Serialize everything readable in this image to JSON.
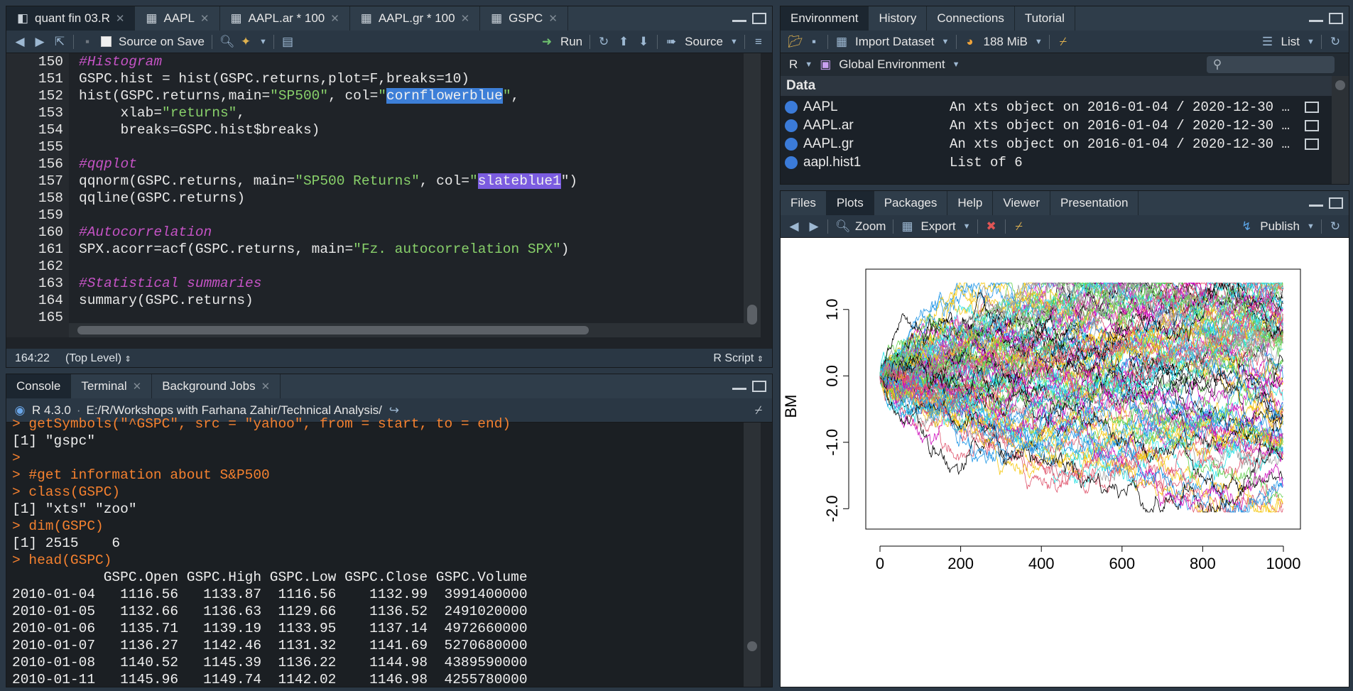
{
  "source_pane": {
    "tabs": [
      {
        "label": "quant fin 03.R",
        "active": true
      },
      {
        "label": "AAPL"
      },
      {
        "label": "AAPL.ar * 100"
      },
      {
        "label": "AAPL.gr * 100"
      },
      {
        "label": "GSPC"
      }
    ],
    "toolbar": {
      "source_on_save": "Source on Save",
      "run": "Run",
      "source": "Source"
    },
    "code_lines": [
      {
        "n": "150",
        "parts": [
          {
            "t": "#Histogram",
            "c": "cm"
          }
        ]
      },
      {
        "n": "151",
        "parts": [
          {
            "t": "GSPC.hist = hist(GSPC.returns,plot=F,breaks=10)",
            "c": ""
          }
        ]
      },
      {
        "n": "152",
        "parts": [
          {
            "t": "hist(GSPC.returns,main=",
            "c": ""
          },
          {
            "t": "\"SP500\"",
            "c": "str"
          },
          {
            "t": ", col=",
            "c": ""
          },
          {
            "t": "\"",
            "c": "str"
          },
          {
            "t": "cornflowerblue",
            "c": "hl1"
          },
          {
            "t": "\"",
            "c": "str"
          },
          {
            "t": ",",
            "c": ""
          }
        ]
      },
      {
        "n": "153",
        "parts": [
          {
            "t": "     xlab=",
            "c": ""
          },
          {
            "t": "\"returns\"",
            "c": "str"
          },
          {
            "t": ",",
            "c": ""
          }
        ]
      },
      {
        "n": "154",
        "parts": [
          {
            "t": "     breaks=GSPC.hist$breaks)",
            "c": ""
          }
        ]
      },
      {
        "n": "155",
        "parts": []
      },
      {
        "n": "156",
        "parts": [
          {
            "t": "#qqplot",
            "c": "cm"
          }
        ]
      },
      {
        "n": "157",
        "parts": [
          {
            "t": "qqnorm(GSPC.returns, main=",
            "c": ""
          },
          {
            "t": "\"SP500 Returns\"",
            "c": "str"
          },
          {
            "t": ", col=",
            "c": ""
          },
          {
            "t": "\"",
            "c": "str"
          },
          {
            "t": "slateblue1",
            "c": "hl2"
          },
          {
            "t": "\")",
            "c": ""
          }
        ]
      },
      {
        "n": "158",
        "parts": [
          {
            "t": "qqline(GSPC.returns)",
            "c": ""
          }
        ]
      },
      {
        "n": "159",
        "parts": []
      },
      {
        "n": "160",
        "parts": [
          {
            "t": "#Autocorrelation",
            "c": "cm"
          }
        ]
      },
      {
        "n": "161",
        "parts": [
          {
            "t": "SPX.acorr=acf(GSPC.returns, main=",
            "c": ""
          },
          {
            "t": "\"Fz. autocorrelation SPX\"",
            "c": "str"
          },
          {
            "t": ")",
            "c": ""
          }
        ]
      },
      {
        "n": "162",
        "parts": []
      },
      {
        "n": "163",
        "parts": [
          {
            "t": "#Statistical summaries",
            "c": "cm"
          }
        ]
      },
      {
        "n": "164",
        "parts": [
          {
            "t": "summary(GSPC.returns)",
            "c": ""
          }
        ]
      },
      {
        "n": "165",
        "parts": []
      }
    ],
    "status": {
      "position": "164:22",
      "scope": "(Top Level)",
      "filetype": "R Script"
    }
  },
  "console_pane": {
    "tabs": [
      {
        "label": "Console",
        "active": true
      },
      {
        "label": "Terminal"
      },
      {
        "label": "Background Jobs"
      }
    ],
    "r_version": "R 4.3.0",
    "path": "E:/R/Workshops with Farhana Zahir/Technical Analysis/",
    "lines": [
      {
        "t": "> getSymbols(\"^GSPC\", src = \"yahoo\", from = start, to = end)",
        "c": "prompt"
      },
      {
        "t": "[1] \"gspc\"",
        "c": "out"
      },
      {
        "t": ">",
        "c": "prompt"
      },
      {
        "t": "> #get information about S&P500",
        "c": "prompt"
      },
      {
        "t": "> class(GSPC)",
        "c": "prompt"
      },
      {
        "t": "[1] \"xts\" \"zoo\"",
        "c": "out"
      },
      {
        "t": "> dim(GSPC)",
        "c": "prompt"
      },
      {
        "t": "[1] 2515    6",
        "c": "out"
      },
      {
        "t": "> head(GSPC)",
        "c": "prompt"
      },
      {
        "t": "           GSPC.Open GSPC.High GSPC.Low GSPC.Close GSPC.Volume",
        "c": "out"
      },
      {
        "t": "2010-01-04   1116.56   1133.87  1116.56    1132.99  3991400000",
        "c": "out"
      },
      {
        "t": "2010-01-05   1132.66   1136.63  1129.66    1136.52  2491020000",
        "c": "out"
      },
      {
        "t": "2010-01-06   1135.71   1139.19  1133.95    1137.14  4972660000",
        "c": "out"
      },
      {
        "t": "2010-01-07   1136.27   1142.46  1131.32    1141.69  5270680000",
        "c": "out"
      },
      {
        "t": "2010-01-08   1140.52   1145.39  1136.22    1144.98  4389590000",
        "c": "out"
      },
      {
        "t": "2010-01-11   1145.96   1149.74  1142.02    1146.98  4255780000",
        "c": "out"
      }
    ]
  },
  "env_pane": {
    "tabs": [
      {
        "label": "Environment",
        "active": true
      },
      {
        "label": "History"
      },
      {
        "label": "Connections"
      },
      {
        "label": "Tutorial"
      }
    ],
    "toolbar": {
      "import_dataset": "Import Dataset",
      "memory": "188 MiB",
      "list": "List"
    },
    "lang": "R",
    "scope": "Global Environment",
    "section": "Data",
    "rows": [
      {
        "name": "AAPL",
        "value": "An xts object on 2016-01-04 / 2020-12-30 …"
      },
      {
        "name": "AAPL.ar",
        "value": "An xts object on 2016-01-04 / 2020-12-30 …"
      },
      {
        "name": "AAPL.gr",
        "value": "An xts object on 2016-01-04 / 2020-12-30 …"
      },
      {
        "name": "aapl.hist1",
        "value": "List of  6"
      }
    ]
  },
  "plots_pane": {
    "tabs": [
      {
        "label": "Files"
      },
      {
        "label": "Plots",
        "active": true
      },
      {
        "label": "Packages"
      },
      {
        "label": "Help"
      },
      {
        "label": "Viewer"
      },
      {
        "label": "Presentation"
      }
    ],
    "toolbar": {
      "zoom": "Zoom",
      "export": "Export",
      "publish": "Publish"
    }
  },
  "chart_data": {
    "type": "line",
    "title": "",
    "xlabel": "",
    "ylabel": "BM",
    "xlim": [
      0,
      1000
    ],
    "ylim": [
      -2.2,
      1.5
    ],
    "xticks": [
      "0",
      "200",
      "400",
      "600",
      "800",
      "1000"
    ],
    "xtick_values": [
      0,
      200,
      400,
      600,
      800,
      1000
    ],
    "yticks": [
      "-2.0",
      "-1.0",
      "0.0",
      "1.0"
    ],
    "ytick_values": [
      -2.0,
      -1.0,
      0.0,
      1.0
    ],
    "n_series": 100,
    "n_steps": 1000,
    "series_colors": [
      "#000000",
      "#df536b",
      "#61d04f",
      "#2297e6",
      "#28e2e5",
      "#cd0bbc",
      "#f5c710",
      "#9e9e9e"
    ],
    "description_note": "simulated Brownian motion paths starting at 0"
  }
}
